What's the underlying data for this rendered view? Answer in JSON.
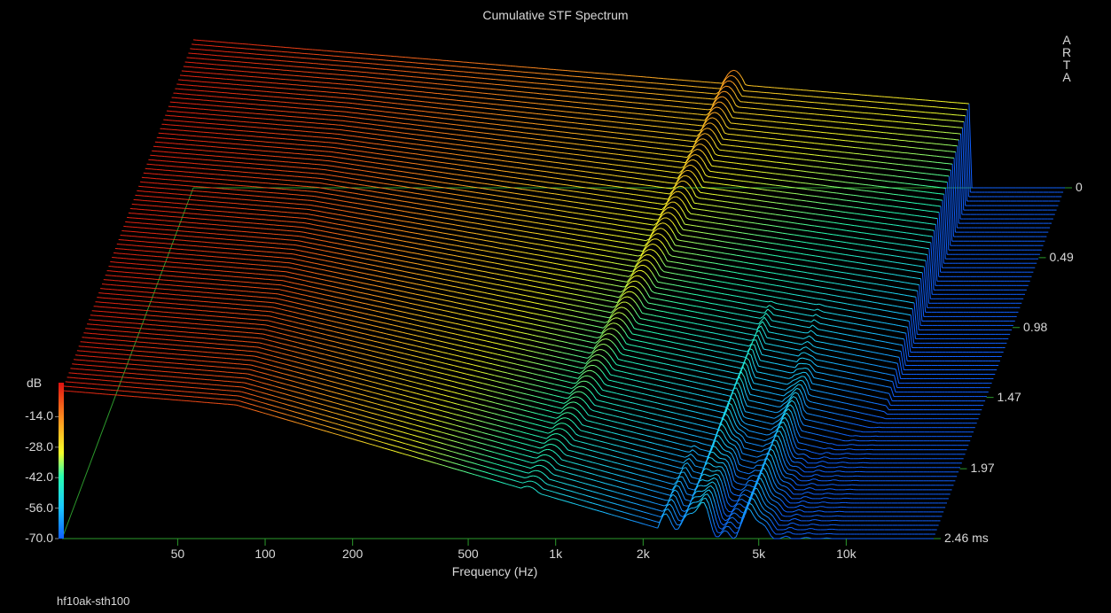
{
  "chart_data": {
    "type": "waterfall",
    "title": "Cumulative STF Spectrum",
    "xlabel": "Frequency (Hz)",
    "x_scale": "log",
    "xlim": [
      20,
      20000
    ],
    "x_ticks": [
      {
        "value": 50,
        "label": "50"
      },
      {
        "value": 100,
        "label": "100"
      },
      {
        "value": 200,
        "label": "200"
      },
      {
        "value": 500,
        "label": "500"
      },
      {
        "value": 1000,
        "label": "1k"
      },
      {
        "value": 2000,
        "label": "2k"
      },
      {
        "value": 5000,
        "label": "5k"
      },
      {
        "value": 10000,
        "label": "10k"
      }
    ],
    "z_unit": "dB",
    "zlim": [
      -70,
      0
    ],
    "z_ticks": [
      "-14.0",
      "-28.0",
      "-42.0",
      "-56.0",
      "-70.0"
    ],
    "time_unit": "ms",
    "time_range": [
      0,
      2.46
    ],
    "time_ticks": [
      {
        "value": 0,
        "label": "0"
      },
      {
        "value": 0.49,
        "label": "0.49"
      },
      {
        "value": 0.98,
        "label": "0.98"
      },
      {
        "value": 1.47,
        "label": "1.47"
      },
      {
        "value": 1.97,
        "label": "1.97"
      },
      {
        "value": 2.46,
        "label": "2.46 ms"
      }
    ],
    "slices": 80,
    "peaks": [
      {
        "freq": 1450,
        "level_db": -16
      },
      {
        "freq": 3100,
        "level_db": -40
      },
      {
        "freq": 4700,
        "level_db": -38
      }
    ]
  },
  "brand": [
    "A",
    "R",
    "T",
    "A"
  ],
  "filename": "hf10ak-sth100"
}
